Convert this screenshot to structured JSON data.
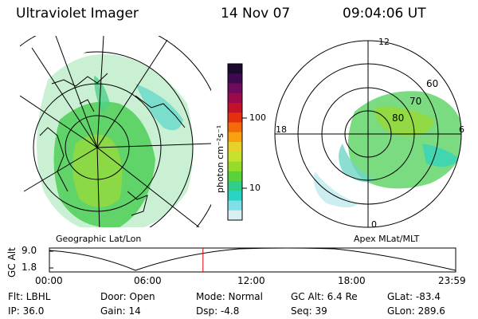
{
  "header": {
    "instrument": "Ultraviolet Imager",
    "date": "14 Nov 07",
    "time": "09:04:06 UT"
  },
  "colorbar": {
    "label": "photon cm⁻²s⁻¹",
    "ticks": [
      "100",
      "10"
    ],
    "colors": [
      "#1a0a2e",
      "#3d0a4f",
      "#6e0b5c",
      "#9a0a4a",
      "#c4102a",
      "#e53010",
      "#f46a0a",
      "#f9a010",
      "#e8d02a",
      "#c8e02e",
      "#96dc2a",
      "#5ad23c",
      "#2fcf8a",
      "#2ad4c4",
      "#7fe0e8",
      "#d8f0f4"
    ]
  },
  "left_map": {
    "caption": "Geographic Lat/Lon"
  },
  "right_map": {
    "caption": "Apex MLat/MLT",
    "mlt_labels": {
      "top": "12",
      "bottom": "0",
      "left": "18",
      "right": "6"
    },
    "lat_labels": [
      "60",
      "70",
      "80"
    ]
  },
  "timeline": {
    "ylabel": "GC Alt",
    "y_ticks": [
      "9.0",
      "1.8"
    ],
    "x_ticks": [
      "00:00",
      "06:00",
      "12:00",
      "18:00",
      "23:59"
    ],
    "current_fraction": 0.378
  },
  "info": {
    "filter": "Flt: LBHL",
    "ip": "IP: 36.0",
    "door": "Door: Open",
    "gain": "Gain: 14",
    "mode": "Mode: Normal",
    "dsp": "Dsp:    -4.8",
    "gc_alt": "GC Alt: 6.4 Re",
    "seq": "Seq: 39",
    "glat": "GLat: -83.4",
    "glon": "GLon: 289.6"
  }
}
